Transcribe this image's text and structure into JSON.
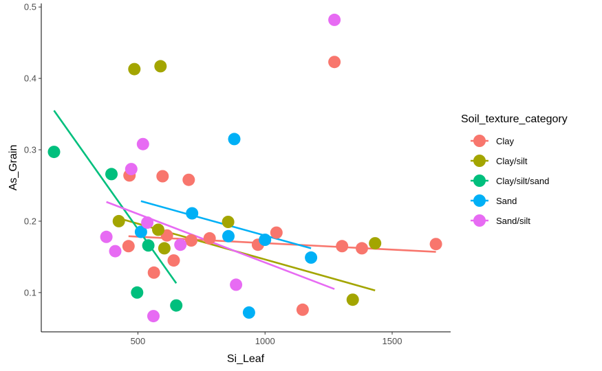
{
  "chart_data": {
    "type": "scatter",
    "xlabel": "Si_Leaf",
    "ylabel": "As_Grain",
    "xlim": [
      120,
      1730
    ],
    "ylim": [
      0.045,
      0.505
    ],
    "x_ticks": [
      500,
      1000,
      1500
    ],
    "y_ticks": [
      0.1,
      0.2,
      0.3,
      0.4,
      0.5
    ],
    "grid": false,
    "legend_position": "right",
    "legend_title": "Soil_texture_category",
    "series": [
      {
        "name": "Clay",
        "color": "#F8766D",
        "points": [
          {
            "x": 463,
            "y": 0.165
          },
          {
            "x": 467,
            "y": 0.264
          },
          {
            "x": 563,
            "y": 0.128
          },
          {
            "x": 597,
            "y": 0.263
          },
          {
            "x": 614,
            "y": 0.18
          },
          {
            "x": 641,
            "y": 0.145
          },
          {
            "x": 700,
            "y": 0.258
          },
          {
            "x": 710,
            "y": 0.173
          },
          {
            "x": 782,
            "y": 0.176
          },
          {
            "x": 972,
            "y": 0.167
          },
          {
            "x": 1045,
            "y": 0.184
          },
          {
            "x": 1148,
            "y": 0.076
          },
          {
            "x": 1273,
            "y": 0.423
          },
          {
            "x": 1303,
            "y": 0.165
          },
          {
            "x": 1381,
            "y": 0.162
          },
          {
            "x": 1672,
            "y": 0.168
          }
        ],
        "trend": [
          {
            "x": 463,
            "y": 0.179
          },
          {
            "x": 1672,
            "y": 0.157
          }
        ]
      },
      {
        "name": "Clay/silt",
        "color": "#A3A500",
        "points": [
          {
            "x": 425,
            "y": 0.2
          },
          {
            "x": 486,
            "y": 0.413
          },
          {
            "x": 580,
            "y": 0.188
          },
          {
            "x": 589,
            "y": 0.417
          },
          {
            "x": 604,
            "y": 0.162
          },
          {
            "x": 855,
            "y": 0.199
          },
          {
            "x": 1345,
            "y": 0.09
          },
          {
            "x": 1433,
            "y": 0.169
          }
        ],
        "trend": [
          {
            "x": 425,
            "y": 0.204
          },
          {
            "x": 1433,
            "y": 0.103
          }
        ]
      },
      {
        "name": "Clay/silt/sand",
        "color": "#00BF7D",
        "points": [
          {
            "x": 170,
            "y": 0.297
          },
          {
            "x": 396,
            "y": 0.266
          },
          {
            "x": 497,
            "y": 0.1
          },
          {
            "x": 541,
            "y": 0.166
          },
          {
            "x": 651,
            "y": 0.082
          }
        ],
        "trend": [
          {
            "x": 170,
            "y": 0.355
          },
          {
            "x": 651,
            "y": 0.113
          }
        ]
      },
      {
        "name": "Sand",
        "color": "#00B0F6",
        "points": [
          {
            "x": 512,
            "y": 0.185
          },
          {
            "x": 713,
            "y": 0.211
          },
          {
            "x": 856,
            "y": 0.179
          },
          {
            "x": 879,
            "y": 0.315
          },
          {
            "x": 937,
            "y": 0.072
          },
          {
            "x": 1000,
            "y": 0.174
          },
          {
            "x": 1181,
            "y": 0.149
          }
        ],
        "trend": [
          {
            "x": 512,
            "y": 0.228
          },
          {
            "x": 1181,
            "y": 0.162
          }
        ]
      },
      {
        "name": "Sand/silt",
        "color": "#E76BF3",
        "points": [
          {
            "x": 376,
            "y": 0.178
          },
          {
            "x": 411,
            "y": 0.158
          },
          {
            "x": 474,
            "y": 0.273
          },
          {
            "x": 520,
            "y": 0.308
          },
          {
            "x": 537,
            "y": 0.198
          },
          {
            "x": 561,
            "y": 0.067
          },
          {
            "x": 667,
            "y": 0.167
          },
          {
            "x": 886,
            "y": 0.111
          },
          {
            "x": 1273,
            "y": 0.482
          }
        ],
        "trend": [
          {
            "x": 376,
            "y": 0.227
          },
          {
            "x": 1273,
            "y": 0.105
          }
        ]
      }
    ]
  }
}
